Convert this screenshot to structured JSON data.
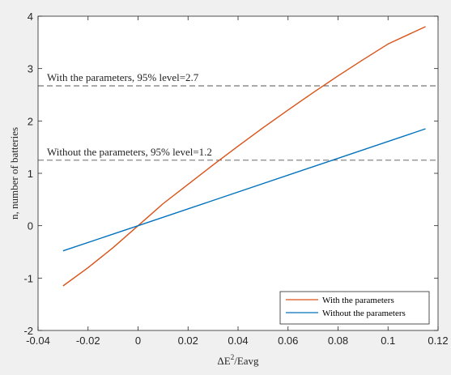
{
  "chart_data": {
    "type": "line",
    "xlabel": "ΔE²/Eavg",
    "ylabel": "n, number of batteries",
    "xlim": [
      -0.04,
      0.12
    ],
    "ylim": [
      -2,
      4
    ],
    "xticks": [
      -0.04,
      -0.02,
      0,
      0.02,
      0.04,
      0.06,
      0.08,
      0.1,
      0.12
    ],
    "xtick_labels": [
      "-0.04",
      "-0.02",
      "0",
      "0.02",
      "0.04",
      "0.06",
      "0.08",
      "0.1",
      "0.12"
    ],
    "yticks": [
      -2,
      -1,
      0,
      1,
      2,
      3,
      4
    ],
    "ytick_labels": [
      "-2",
      "-1",
      "0",
      "1",
      "2",
      "3",
      "4"
    ],
    "grid": false,
    "legend_position": "bottom-right",
    "series": [
      {
        "name": "With the parameters",
        "color": "#d95319",
        "x": [
          -0.03,
          -0.02,
          -0.01,
          0,
          0.01,
          0.02,
          0.03,
          0.04,
          0.05,
          0.06,
          0.07,
          0.08,
          0.09,
          0.1,
          0.115
        ],
        "y": [
          -1.15,
          -0.8,
          -0.42,
          0,
          0.42,
          0.79,
          1.16,
          1.52,
          1.87,
          2.21,
          2.54,
          2.86,
          3.17,
          3.47,
          3.8
        ]
      },
      {
        "name": "Without the parameters",
        "color": "#0072bd",
        "x": [
          -0.03,
          0,
          0.115
        ],
        "y": [
          -0.48,
          0,
          1.85
        ]
      }
    ],
    "reference_lines": [
      {
        "y": 2.67,
        "label": "With the parameters, 95% level=2.7",
        "color": "#555555"
      },
      {
        "y": 1.25,
        "label": "Without the parameters, 95% level=1.2",
        "color": "#555555"
      }
    ]
  }
}
